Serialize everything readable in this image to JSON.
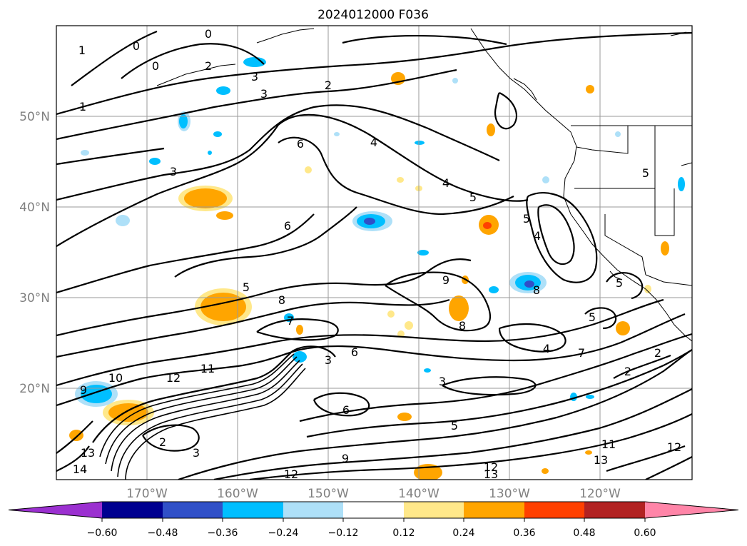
{
  "title": "2024012000 F036",
  "lat_labels": [
    "50°N",
    "40°N",
    "30°N",
    "20°N"
  ],
  "lon_labels": [
    "170°W",
    "160°W",
    "150°W",
    "140°W",
    "130°W",
    "120°W"
  ],
  "colorbar": {
    "ticks": [
      "−0.60",
      "−0.48",
      "−0.36",
      "−0.24",
      "−0.12",
      "0.12",
      "0.24",
      "0.36",
      "0.48",
      "0.60"
    ],
    "colors": [
      "#9b30d0",
      "#000090",
      "#3050c8",
      "#00bfff",
      "#aee0f8",
      "#ffffff",
      "#ffe88a",
      "#ffa500",
      "#ff4000",
      "#b22222",
      "#ff85a8"
    ]
  },
  "contour_labels": [
    "0",
    "0",
    "0",
    "1",
    "1",
    "2",
    "2",
    "2",
    "2",
    "2",
    "3",
    "3",
    "3",
    "3",
    "3",
    "3",
    "4",
    "4",
    "4",
    "4",
    "5",
    "5",
    "5",
    "5",
    "5",
    "5",
    "5",
    "6",
    "6",
    "6",
    "6",
    "7",
    "7",
    "8",
    "8",
    "8",
    "9",
    "9",
    "9",
    "10",
    "11",
    "11",
    "12",
    "12",
    "12",
    "12",
    "13",
    "13",
    "13",
    "14"
  ]
}
